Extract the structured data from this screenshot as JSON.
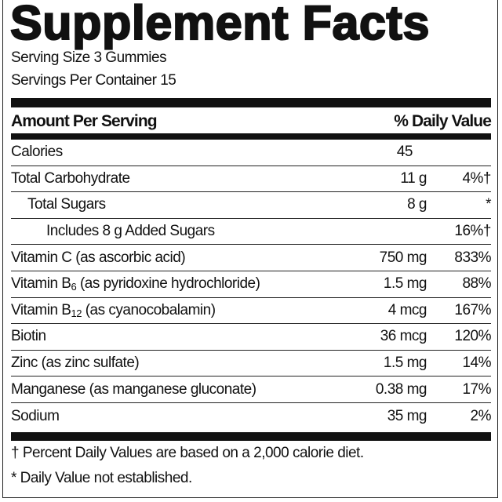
{
  "title": "Supplement Facts",
  "serving_size": "Serving Size 3 Gummies",
  "servings_per_container": "Servings Per Container 15",
  "header": {
    "amount": "Amount Per Serving",
    "dv": "% Daily Value"
  },
  "rows": [
    {
      "name": "Calories",
      "sub": "",
      "suffix": "",
      "amount": "45",
      "dv": ""
    },
    {
      "name": "Total Carbohydrate",
      "sub": "",
      "suffix": "",
      "amount": "11 g",
      "dv": "4%†"
    },
    {
      "name": "Total Sugars",
      "sub": "",
      "suffix": "",
      "amount": "8 g",
      "dv": "*"
    },
    {
      "name": "Includes 8 g Added Sugars",
      "sub": "",
      "suffix": "",
      "amount": "",
      "dv": "16%†"
    },
    {
      "name": "Vitamin C (as ascorbic acid)",
      "sub": "",
      "suffix": "",
      "amount": "750 mg",
      "dv": "833%"
    },
    {
      "name": "Vitamin B",
      "sub": "6",
      "suffix": " (as pyridoxine hydrochloride)",
      "amount": "1.5 mg",
      "dv": "88%"
    },
    {
      "name": "Vitamin B",
      "sub": "12",
      "suffix": " (as cyanocobalamin)",
      "amount": "4 mcg",
      "dv": "167%"
    },
    {
      "name": "Biotin",
      "sub": "",
      "suffix": "",
      "amount": "36 mcg",
      "dv": "120%"
    },
    {
      "name": "Zinc (as zinc sulfate)",
      "sub": "",
      "suffix": "",
      "amount": "1.5 mg",
      "dv": "14%"
    },
    {
      "name": "Manganese (as manganese gluconate)",
      "sub": "",
      "suffix": "",
      "amount": "0.38 mg",
      "dv": "17%"
    },
    {
      "name": "Sodium",
      "sub": "",
      "suffix": "",
      "amount": "35 mg",
      "dv": "2%"
    }
  ],
  "footnotes": [
    "† Percent Daily Values are based on a 2,000 calorie diet.",
    "* Daily Value not established."
  ]
}
